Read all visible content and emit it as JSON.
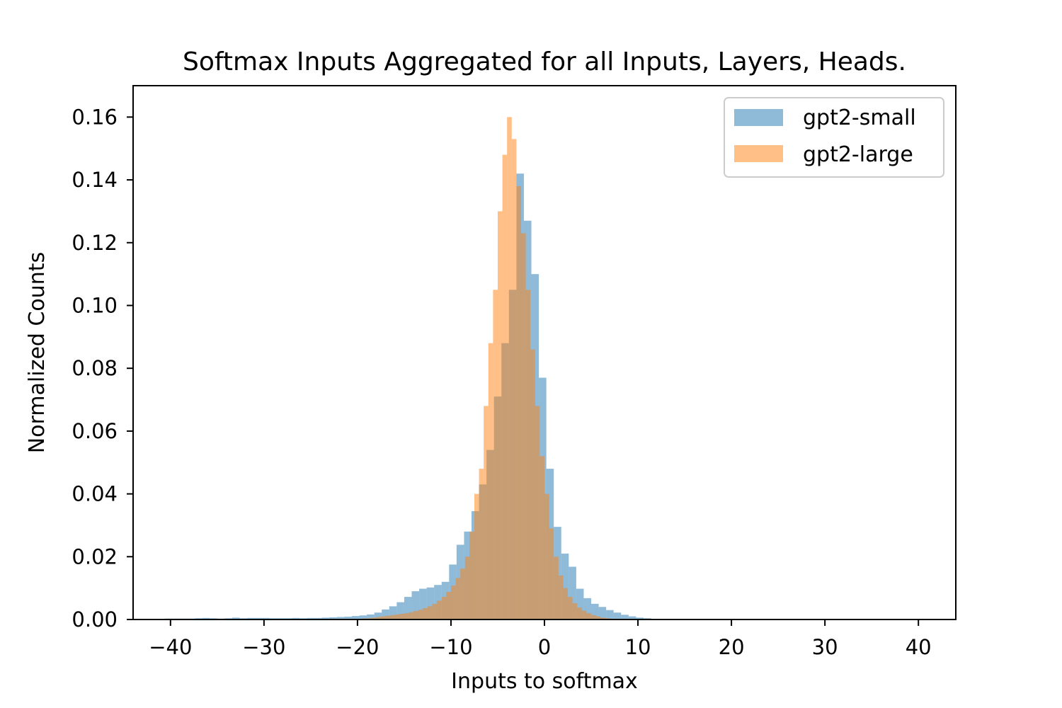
{
  "chart_data": {
    "type": "bar",
    "title": "Softmax Inputs Aggregated for all Inputs, Layers, Heads.",
    "xlabel": "Inputs to softmax",
    "ylabel": "Normalized Counts",
    "xlim": [
      -44,
      44
    ],
    "ylim": [
      0,
      0.17
    ],
    "xticks": [
      -40,
      -30,
      -20,
      -10,
      0,
      10,
      20,
      30,
      40
    ],
    "xtick_labels": [
      "−40",
      "−30",
      "−20",
      "−10",
      "0",
      "10",
      "20",
      "30",
      "40"
    ],
    "yticks": [
      0,
      0.02,
      0.04,
      0.06,
      0.08,
      0.1,
      0.12,
      0.14,
      0.16
    ],
    "ytick_labels": [
      "0.00",
      "0.02",
      "0.04",
      "0.06",
      "0.08",
      "0.10",
      "0.12",
      "0.14",
      "0.16"
    ],
    "grid": false,
    "legend_position": "top-right",
    "series": [
      {
        "name": "gpt2-small",
        "color": "#1f77b4",
        "alpha": 0.5,
        "bins": [
          [
            -40.6,
            -39.8,
            0.0003
          ],
          [
            -39.8,
            -39.0,
            0.0003
          ],
          [
            -39.0,
            -38.2,
            0.0003
          ],
          [
            -38.2,
            -37.4,
            0.0003
          ],
          [
            -37.4,
            -36.6,
            0.0004
          ],
          [
            -36.6,
            -35.8,
            0.0005
          ],
          [
            -35.8,
            -35.0,
            0.0004
          ],
          [
            -35.0,
            -34.2,
            0.0003
          ],
          [
            -34.2,
            -33.4,
            0.0004
          ],
          [
            -33.4,
            -32.6,
            0.0006
          ],
          [
            -32.6,
            -31.8,
            0.0004
          ],
          [
            -31.8,
            -31.0,
            0.0005
          ],
          [
            -31.0,
            -30.2,
            0.0005
          ],
          [
            -30.2,
            -29.4,
            0.0005
          ],
          [
            -29.4,
            -28.6,
            0.0004
          ],
          [
            -28.6,
            -27.8,
            0.0004
          ],
          [
            -27.8,
            -27.0,
            0.0004
          ],
          [
            -27.0,
            -26.2,
            0.0005
          ],
          [
            -26.2,
            -25.4,
            0.0004
          ],
          [
            -25.4,
            -24.6,
            0.0005
          ],
          [
            -24.6,
            -23.8,
            0.0005
          ],
          [
            -23.8,
            -23.0,
            0.0006
          ],
          [
            -23.0,
            -22.2,
            0.0007
          ],
          [
            -22.2,
            -21.4,
            0.0008
          ],
          [
            -21.4,
            -20.6,
            0.0009
          ],
          [
            -20.6,
            -19.8,
            0.0011
          ],
          [
            -19.8,
            -19.0,
            0.0013
          ],
          [
            -19.0,
            -18.2,
            0.0016
          ],
          [
            -18.2,
            -17.4,
            0.0022
          ],
          [
            -17.4,
            -16.6,
            0.0032
          ],
          [
            -16.6,
            -15.8,
            0.0042
          ],
          [
            -15.8,
            -15.0,
            0.0055
          ],
          [
            -15.0,
            -14.2,
            0.0072
          ],
          [
            -14.2,
            -13.4,
            0.009
          ],
          [
            -13.4,
            -12.6,
            0.0098
          ],
          [
            -12.6,
            -11.8,
            0.0102
          ],
          [
            -11.8,
            -11.0,
            0.011
          ],
          [
            -11.0,
            -10.2,
            0.012
          ],
          [
            -10.2,
            -9.4,
            0.0175
          ],
          [
            -9.4,
            -8.6,
            0.0238
          ],
          [
            -8.6,
            -7.8,
            0.028
          ],
          [
            -7.8,
            -7.0,
            0.0345
          ],
          [
            -7.0,
            -6.2,
            0.043
          ],
          [
            -6.2,
            -5.4,
            0.054
          ],
          [
            -5.4,
            -4.6,
            0.071
          ],
          [
            -4.6,
            -3.8,
            0.088
          ],
          [
            -3.8,
            -3.0,
            0.105
          ],
          [
            -3.0,
            -2.2,
            0.142
          ],
          [
            -2.2,
            -1.4,
            0.127
          ],
          [
            -1.4,
            -0.6,
            0.11
          ],
          [
            -0.6,
            0.2,
            0.077
          ],
          [
            0.2,
            1.0,
            0.048
          ],
          [
            1.0,
            1.8,
            0.0295
          ],
          [
            1.8,
            2.6,
            0.021
          ],
          [
            2.6,
            3.4,
            0.0168
          ],
          [
            3.4,
            4.2,
            0.0098
          ],
          [
            4.2,
            5.0,
            0.0068
          ],
          [
            5.0,
            5.8,
            0.005
          ],
          [
            5.8,
            6.6,
            0.004
          ],
          [
            6.6,
            7.4,
            0.003
          ],
          [
            7.4,
            8.2,
            0.0022
          ],
          [
            8.2,
            9.0,
            0.0015
          ],
          [
            9.0,
            9.8,
            0.001
          ],
          [
            9.8,
            10.6,
            0.0006
          ],
          [
            10.6,
            11.4,
            0.0004
          ],
          [
            11.4,
            12.2,
            0.0002
          ]
        ]
      },
      {
        "name": "gpt2-large",
        "color": "#ff7f0e",
        "alpha": 0.5,
        "bins": [
          [
            -20.0,
            -19.5,
            0.0002
          ],
          [
            -19.5,
            -19.0,
            0.0003
          ],
          [
            -19.0,
            -18.5,
            0.0004
          ],
          [
            -18.5,
            -18.0,
            0.0006
          ],
          [
            -18.0,
            -17.5,
            0.0008
          ],
          [
            -17.5,
            -17.0,
            0.001
          ],
          [
            -17.0,
            -16.5,
            0.0012
          ],
          [
            -16.5,
            -16.0,
            0.0014
          ],
          [
            -16.0,
            -15.5,
            0.0016
          ],
          [
            -15.5,
            -15.0,
            0.0018
          ],
          [
            -15.0,
            -14.5,
            0.002
          ],
          [
            -14.5,
            -14.0,
            0.0023
          ],
          [
            -14.0,
            -13.5,
            0.0027
          ],
          [
            -13.5,
            -13.0,
            0.0031
          ],
          [
            -13.0,
            -12.5,
            0.0036
          ],
          [
            -12.5,
            -12.0,
            0.0042
          ],
          [
            -12.0,
            -11.5,
            0.005
          ],
          [
            -11.5,
            -11.0,
            0.006
          ],
          [
            -11.0,
            -10.5,
            0.0072
          ],
          [
            -10.5,
            -10.0,
            0.0088
          ],
          [
            -10.0,
            -9.5,
            0.0108
          ],
          [
            -9.5,
            -9.0,
            0.0132
          ],
          [
            -9.0,
            -8.5,
            0.0162
          ],
          [
            -8.5,
            -8.0,
            0.02
          ],
          [
            -8.0,
            -7.5,
            0.028
          ],
          [
            -7.5,
            -7.0,
            0.04
          ],
          [
            -7.0,
            -6.5,
            0.048
          ],
          [
            -6.5,
            -6.0,
            0.068
          ],
          [
            -6.0,
            -5.5,
            0.088
          ],
          [
            -5.5,
            -5.0,
            0.105
          ],
          [
            -5.0,
            -4.5,
            0.13
          ],
          [
            -4.5,
            -4.0,
            0.148
          ],
          [
            -4.0,
            -3.5,
            0.16
          ],
          [
            -3.5,
            -3.0,
            0.153
          ],
          [
            -3.0,
            -2.5,
            0.138
          ],
          [
            -2.5,
            -2.0,
            0.123
          ],
          [
            -2.0,
            -1.5,
            0.105
          ],
          [
            -1.5,
            -1.0,
            0.086
          ],
          [
            -1.0,
            -0.5,
            0.068
          ],
          [
            -0.5,
            0.0,
            0.052
          ],
          [
            0.0,
            0.5,
            0.04
          ],
          [
            0.5,
            1.0,
            0.029
          ],
          [
            1.0,
            1.5,
            0.02
          ],
          [
            1.5,
            2.0,
            0.014
          ],
          [
            2.0,
            2.5,
            0.01
          ],
          [
            2.5,
            3.0,
            0.0072
          ],
          [
            3.0,
            3.5,
            0.0052
          ],
          [
            3.5,
            4.0,
            0.0038
          ],
          [
            4.0,
            4.5,
            0.0028
          ],
          [
            4.5,
            5.0,
            0.002
          ],
          [
            5.0,
            5.5,
            0.0014
          ],
          [
            5.5,
            6.0,
            0.001
          ],
          [
            6.0,
            6.5,
            0.0006
          ],
          [
            6.5,
            7.0,
            0.0004
          ]
        ]
      }
    ]
  }
}
